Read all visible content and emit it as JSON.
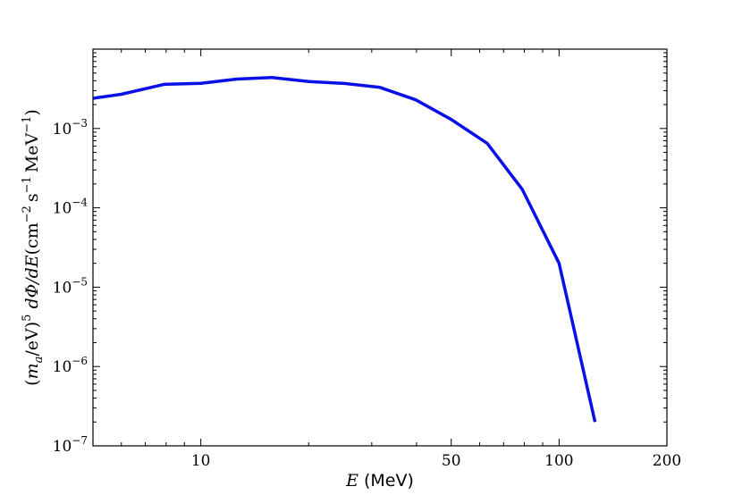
{
  "chart_data": {
    "type": "line",
    "title": "",
    "xlabel": {
      "var": "E",
      "unit": "(MeV)"
    },
    "ylabel": {
      "paren_open": "(",
      "m": "m",
      "m_sub": "a",
      "slash_ev": "/eV)",
      "exp5": "5",
      "dphi_de": "dΦ/dE",
      "units_open": "(cm",
      "exp_m2": "−2",
      "s": "s",
      "exp_m1a": "−1",
      "mev": "MeV",
      "exp_m1b": "−1",
      "units_close": ")"
    },
    "x_scale": "log",
    "y_scale": "log",
    "xlim": [
      5,
      200
    ],
    "ylim": [
      1e-07,
      0.01
    ],
    "grid": false,
    "x_ticks": [
      {
        "value": 10,
        "label": "10"
      },
      {
        "value": 50,
        "label": "50"
      },
      {
        "value": 100,
        "label": "100"
      },
      {
        "value": 200,
        "label": "200"
      }
    ],
    "y_ticks": [
      {
        "value": 1e-07,
        "base": "10",
        "exp": "−7"
      },
      {
        "value": 1e-06,
        "base": "10",
        "exp": "−6"
      },
      {
        "value": 1e-05,
        "base": "10",
        "exp": "−5"
      },
      {
        "value": 0.0001,
        "base": "10",
        "exp": "−4"
      },
      {
        "value": 0.001,
        "base": "10",
        "exp": "−3"
      }
    ],
    "series": [
      {
        "color": "#0a10e8",
        "x": [
          5,
          6,
          7.9,
          10,
          12.6,
          15.8,
          20,
          25,
          31.6,
          39.8,
          50,
          63,
          79,
          100,
          126
        ],
        "y": [
          0.0024,
          0.0027,
          0.0036,
          0.0037,
          0.0042,
          0.0044,
          0.0039,
          0.0037,
          0.0033,
          0.0023,
          0.0013,
          0.00065,
          0.00017,
          2e-05,
          2e-07
        ]
      }
    ]
  }
}
